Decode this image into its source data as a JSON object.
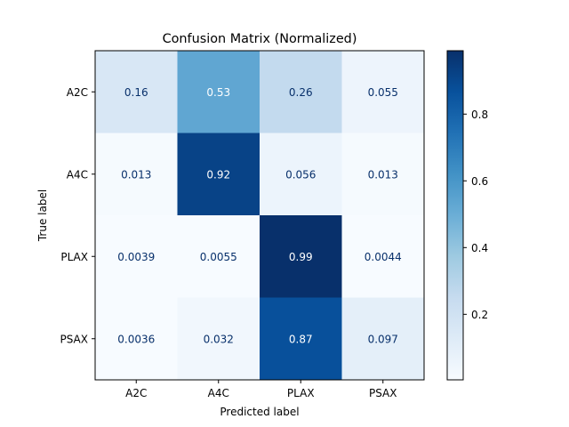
{
  "chart_data": {
    "type": "heatmap",
    "title": "Confusion Matrix (Normalized)",
    "xlabel": "Predicted label",
    "ylabel": "True label",
    "x_categories": [
      "A2C",
      "A4C",
      "PLAX",
      "PSAX"
    ],
    "y_categories": [
      "A2C",
      "A4C",
      "PLAX",
      "PSAX"
    ],
    "values": [
      [
        0.16,
        0.53,
        0.26,
        0.055
      ],
      [
        0.013,
        0.92,
        0.056,
        0.013
      ],
      [
        0.0039,
        0.0055,
        0.99,
        0.0044
      ],
      [
        0.0036,
        0.032,
        0.87,
        0.097
      ]
    ],
    "value_labels": [
      [
        "0.16",
        "0.53",
        "0.26",
        "0.055"
      ],
      [
        "0.013",
        "0.92",
        "0.056",
        "0.013"
      ],
      [
        "0.0039",
        "0.0055",
        "0.99",
        "0.0044"
      ],
      [
        "0.0036",
        "0.032",
        "0.87",
        "0.097"
      ]
    ],
    "colormap": "Blues",
    "colorbar": {
      "range": [
        0.0036,
        0.99
      ],
      "ticks": [
        0.2,
        0.4,
        0.6,
        0.8
      ],
      "tick_labels": [
        "0.2",
        "0.4",
        "0.6",
        "0.8"
      ]
    },
    "text_color_light": "#ffffff",
    "text_color_dark": "#08306b"
  }
}
